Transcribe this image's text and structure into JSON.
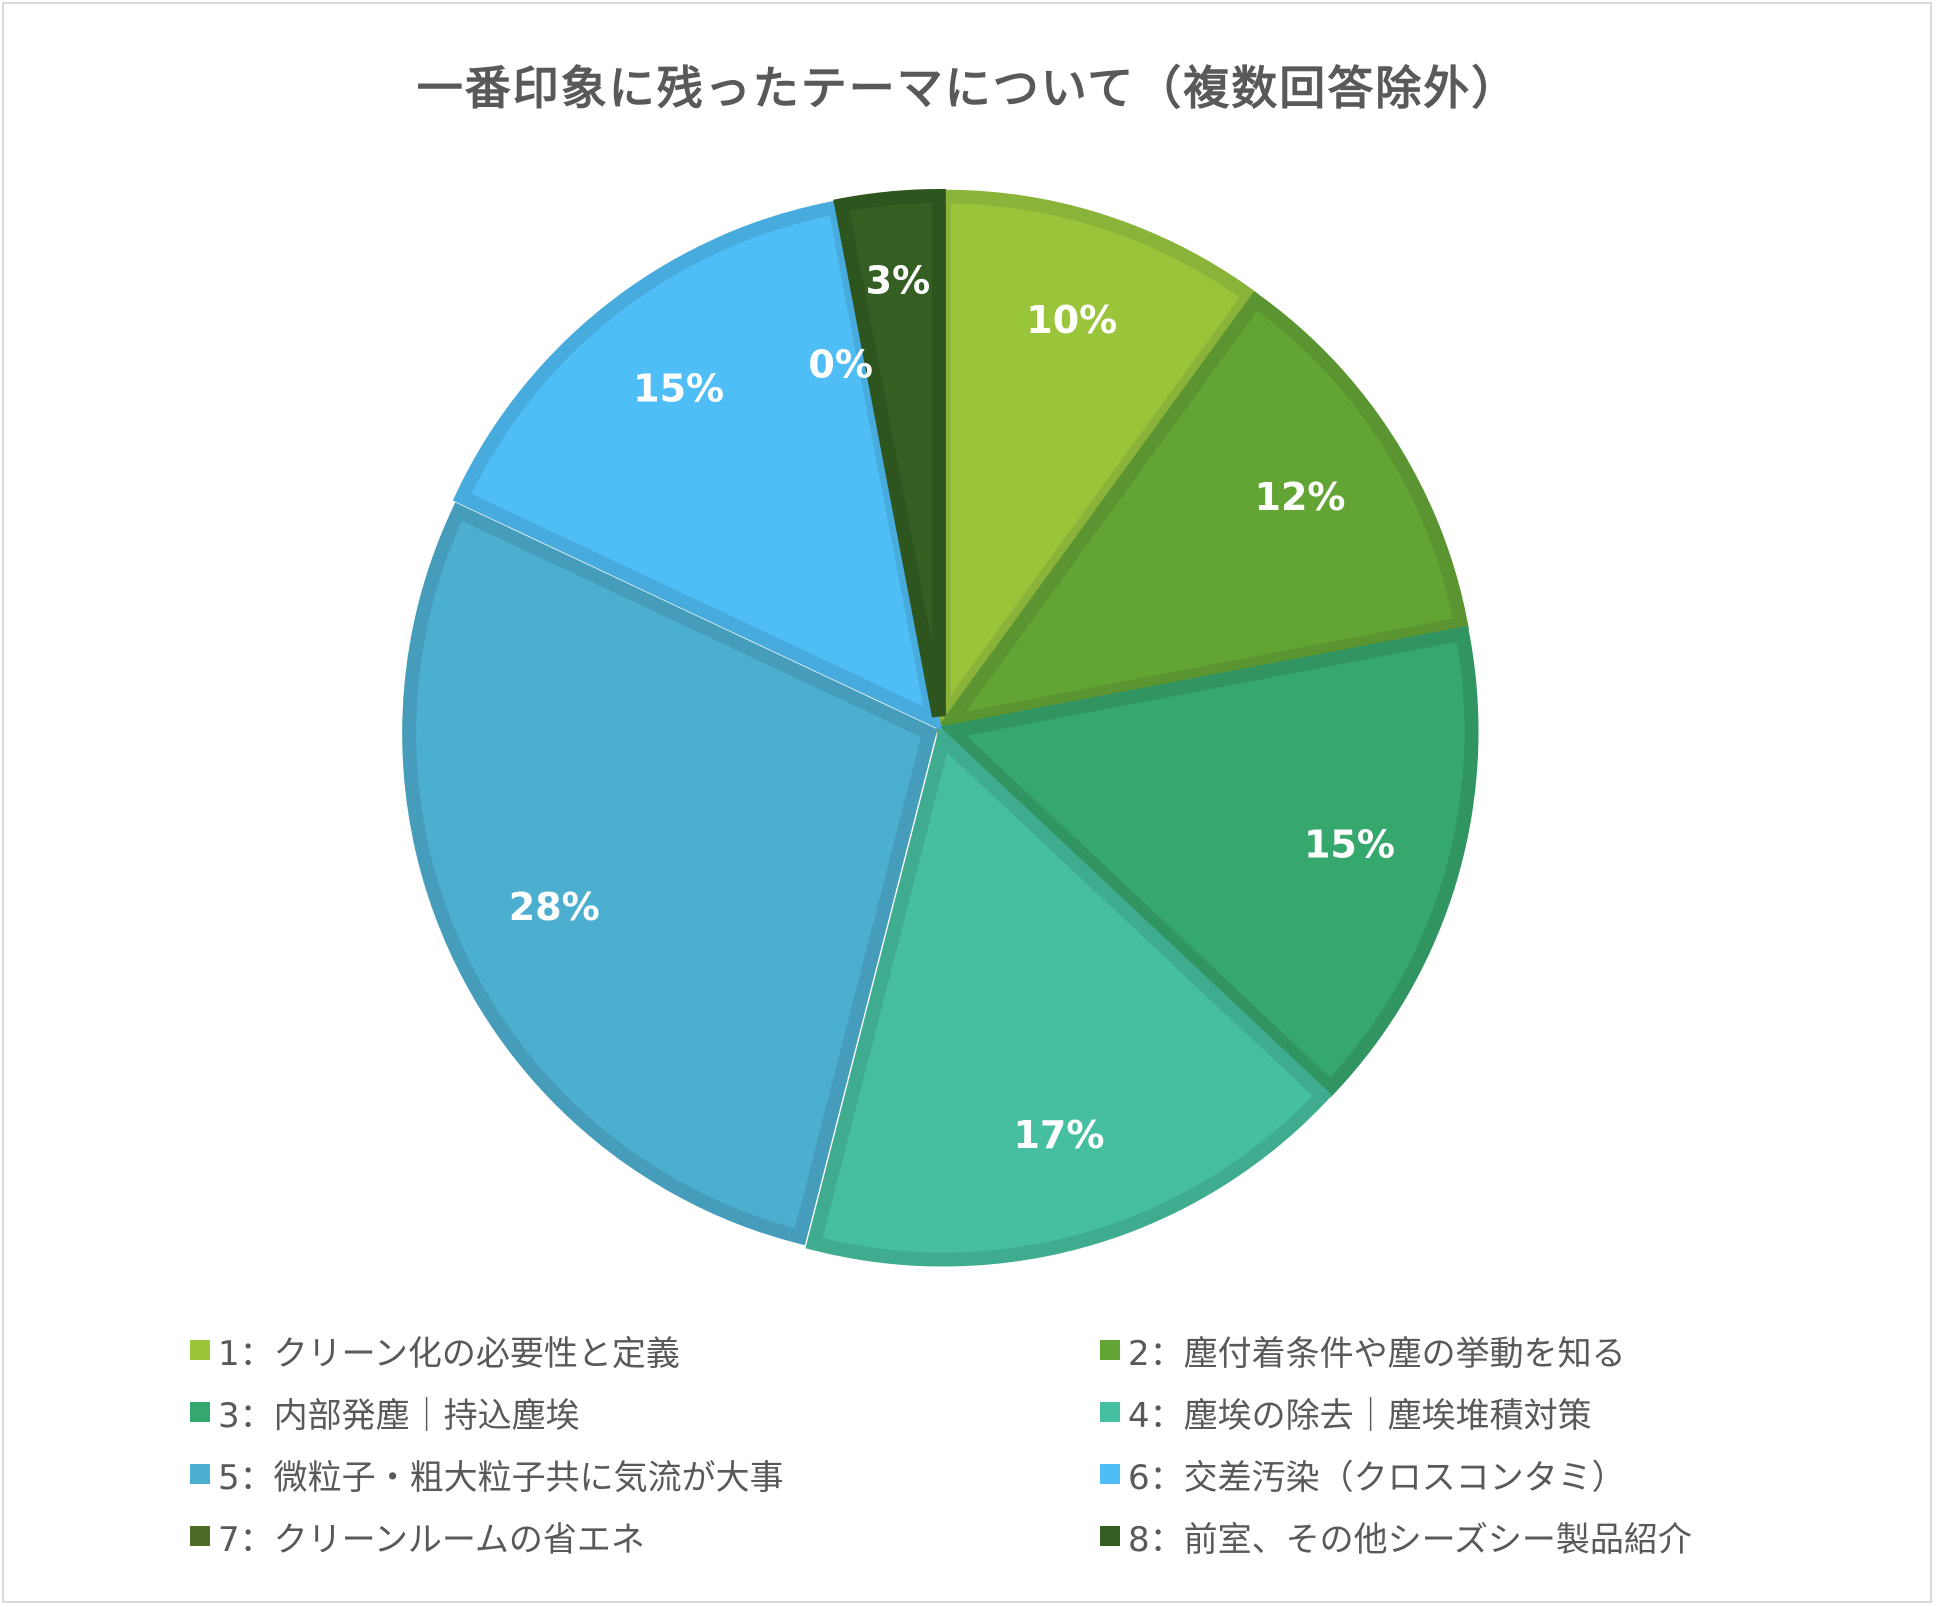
{
  "chart_data": {
    "type": "pie",
    "title": "一番印象に残ったテーマについて（複数回答除外）",
    "slices": [
      {
        "label": "1：クリーン化の必要性と定義",
        "value": 10,
        "value_label": "10%",
        "color": "#9ac43a",
        "border": "#8ab33a"
      },
      {
        "label": "2：塵付着条件や塵の挙動を知る",
        "value": 12,
        "value_label": "12%",
        "color": "#63a534",
        "border": "#5b9531"
      },
      {
        "label": "3：内部発塵｜持込塵埃",
        "value": 15,
        "value_label": "15%",
        "color": "#36a86e",
        "border": "#319562"
      },
      {
        "label": "4：塵埃の除去｜塵埃堆積対策",
        "value": 17,
        "value_label": "17%",
        "color": "#46bea0",
        "border": "#3fac90"
      },
      {
        "label": "5：微粒子・粗大粒子共に気流が大事",
        "value": 28,
        "value_label": "28%",
        "color": "#4dafd0",
        "border": "#459dbb"
      },
      {
        "label": "6：交差汚染（クロスコンタミ）",
        "value": 15,
        "value_label": "15%",
        "color": "#4fbef6",
        "border": "#47abdd"
      },
      {
        "label": "7：クリーンルームの省エネ",
        "value": 0,
        "value_label": "0%",
        "color": "#4b6a23",
        "border": "#435f1f"
      },
      {
        "label": "8：前室、その他シーズシー製品紹介",
        "value": 3,
        "value_label": "3%",
        "color": "#355f22",
        "border": "#2f551e"
      }
    ],
    "legend_position": "bottom"
  }
}
